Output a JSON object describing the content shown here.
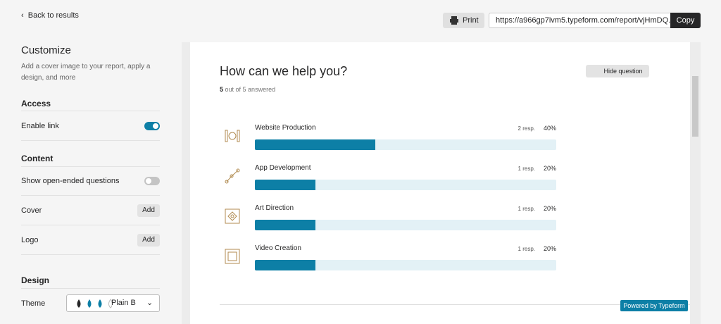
{
  "nav": {
    "back": "Back to results"
  },
  "toolbar": {
    "print": "Print",
    "url": "https://a966gp7ivm5.typeform.com/report/vjHmDQ...",
    "copy": "Copy"
  },
  "sidebar": {
    "title": "Customize",
    "description": "Add a cover image to your report, apply a design, and more",
    "access": {
      "heading": "Access",
      "enable_link": "Enable link"
    },
    "content": {
      "heading": "Content",
      "open_ended": "Show open-ended questions",
      "cover": "Cover",
      "logo": "Logo",
      "add": "Add"
    },
    "design": {
      "heading": "Design",
      "theme": "Theme",
      "theme_value": "Plain B"
    }
  },
  "question": {
    "title": "How can we help you?",
    "hide": "Hide question",
    "answered_count": "5",
    "answered_text": "out of 5 answered",
    "answers": [
      {
        "label": "Website Production",
        "responses": "2 resp.",
        "value": 40,
        "value_label": "40%"
      },
      {
        "label": "App Development",
        "responses": "1 resp.",
        "value": 20,
        "value_label": "20%"
      },
      {
        "label": "Art Direction",
        "responses": "1 resp.",
        "value": 20,
        "value_label": "20%"
      },
      {
        "label": "Video Creation",
        "responses": "1 resp.",
        "value": 20,
        "value_label": "20%"
      }
    ]
  },
  "badge": "Powered by Typeform"
}
